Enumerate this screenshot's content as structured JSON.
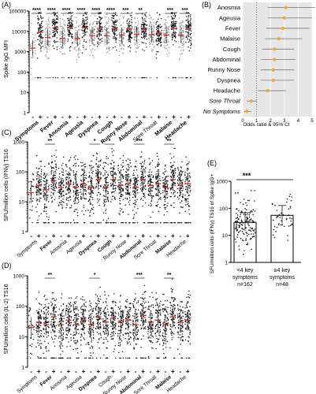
{
  "panels": [
    {
      "letter": "(A)",
      "ylabel": "Spike IgG MFI",
      "yticks": [
        "1",
        "10",
        "100",
        "1000",
        "10000",
        "100000"
      ],
      "groups": [
        "Symptoms",
        "Fever",
        "Anosmia",
        "Ageusia",
        "Dyspnea",
        "Cough",
        "Runny Nose",
        "Abdominal",
        "Sore Throat",
        "Malaise",
        "Headache"
      ],
      "bold": [
        true,
        true,
        true,
        true,
        true,
        true,
        true,
        true,
        false,
        true,
        true
      ],
      "signif": [
        "****",
        "****",
        "****",
        "****",
        "****",
        "****",
        "***",
        "**",
        "",
        "***",
        "***"
      ],
      "minus_label": "-",
      "plus_label": "+"
    },
    {
      "letter": "(C)",
      "ylabel": "SFU/million cells (IFNγ) TS16",
      "yticks": [
        "1",
        "10",
        "100",
        "1000"
      ],
      "groups": [
        "Symptoms",
        "Fever",
        "Anosmia",
        "Ageusia",
        "Dyspnea",
        "Cough",
        "Runny Nose",
        "Abdominal",
        "Sore Throat",
        "Malaise",
        "Headache"
      ],
      "bold": [
        false,
        true,
        false,
        false,
        true,
        true,
        false,
        true,
        false,
        true,
        false
      ],
      "signif": [
        "",
        "**",
        "",
        "",
        "*",
        "*",
        "",
        "***",
        "",
        "**",
        ""
      ],
      "minus_label": "-",
      "plus_label": "+"
    },
    {
      "letter": "(D)",
      "ylabel": "SFU/million cells (IL-2) TS16",
      "yticks": [
        "1",
        "10",
        "100",
        "1000"
      ],
      "groups": [
        "Symptoms",
        "Fever",
        "Anosmia",
        "Ageusia",
        "Dyspnea",
        "Cough",
        "Runny Nose",
        "Abdominal",
        "Sore Throat",
        "Malaise",
        "Headache"
      ],
      "bold": [
        false,
        true,
        false,
        false,
        true,
        false,
        false,
        true,
        false,
        true,
        false
      ],
      "signif": [
        "",
        "**",
        "",
        "",
        "*",
        "",
        "",
        "***",
        "",
        "**",
        ""
      ],
      "minus_label": "-",
      "plus_label": "+"
    }
  ],
  "panel_b": {
    "letter": "(B)",
    "xlabel": "Odds ratio & 95% CI",
    "xticks": [
      "0",
      "1",
      "2",
      "3",
      "4",
      "5"
    ]
  },
  "panel_e": {
    "letter": "(E)",
    "ylabel": "SFU/million cells (IFNγ) TS16 of Spike IgG+",
    "yticks": [
      "1",
      "10",
      "100",
      "1000"
    ],
    "signif": "***",
    "cat1_line1": "<4 key",
    "cat1_line2": "symptoms",
    "cat1_line3": "n=162",
    "cat2_line1": "≥4 key",
    "cat2_line2": "symptoms",
    "cat2_line3": "n=48"
  },
  "colors": {
    "point": "#1a1a1a",
    "point_light": "#9a9a9a",
    "median": "#e0231d",
    "orange": "#f5a623",
    "b_bg": "#e6e6e6",
    "e_bar": "#ffffff"
  },
  "chart_data": [
    {
      "type": "scatter",
      "title": "",
      "ylabel": "Spike IgG MFI",
      "yscale": "log",
      "ylim": [
        1,
        100000
      ],
      "categories": [
        "Symptoms -",
        "Symptoms +",
        "Fever -",
        "Fever +",
        "Anosmia -",
        "Anosmia +",
        "Ageusia -",
        "Ageusia +",
        "Dyspnea -",
        "Dyspnea +",
        "Cough -",
        "Cough +",
        "Runny Nose -",
        "Runny Nose +",
        "Abdominal -",
        "Abdominal +",
        "Sore Throat -",
        "Sore Throat +",
        "Malaise -",
        "Malaise +",
        "Headache -",
        "Headache +"
      ],
      "medians": [
        1500,
        9000,
        5000,
        15000,
        4500,
        16000,
        4500,
        15000,
        6000,
        14000,
        6000,
        13000,
        6500,
        13000,
        7000,
        12000,
        7000,
        9000,
        6500,
        14000,
        6500,
        13000
      ]
    },
    {
      "type": "bar",
      "orientation": "horizontal",
      "xlabel": "Odds ratio & 95% CI",
      "xlim": [
        0,
        5
      ],
      "categories": [
        "Anosmia",
        "Ageusia",
        "Fever",
        "Malaise",
        "Cough",
        "Abdominal",
        "Runny Nose",
        "Dyspnea",
        "Headache",
        "Sore Throat",
        "No Symptoms"
      ],
      "values": [
        3.1,
        3.0,
        2.9,
        2.6,
        2.3,
        2.3,
        2.2,
        2.2,
        1.8,
        0.6,
        0.3
      ],
      "ci_low": [
        1.8,
        1.8,
        1.7,
        1.6,
        1.4,
        1.3,
        1.3,
        1.3,
        1.1,
        0.3,
        0.1
      ],
      "ci_high": [
        5.2,
        5.0,
        4.8,
        4.3,
        3.7,
        3.8,
        3.7,
        3.7,
        3.1,
        1.0,
        0.6
      ]
    },
    {
      "type": "scatter",
      "ylabel": "SFU/million cells (IFNγ) TS16",
      "yscale": "log",
      "ylim": [
        1,
        1000
      ],
      "categories": [
        "Symptoms -",
        "Symptoms +",
        "Fever -",
        "Fever +",
        "Anosmia -",
        "Anosmia +",
        "Ageusia -",
        "Ageusia +",
        "Dyspnea -",
        "Dyspnea +",
        "Cough -",
        "Cough +",
        "Runny Nose -",
        "Runny Nose +",
        "Abdominal -",
        "Abdominal +",
        "Sore Throat -",
        "Sore Throat +",
        "Malaise -",
        "Malaise +",
        "Headache -",
        "Headache +"
      ],
      "medians": [
        20,
        35,
        25,
        50,
        30,
        40,
        30,
        40,
        30,
        55,
        30,
        55,
        35,
        40,
        30,
        55,
        35,
        40,
        30,
        55,
        35,
        40
      ]
    },
    {
      "type": "scatter",
      "ylabel": "SFU/million cells (IL-2) TS16",
      "yscale": "log",
      "ylim": [
        1,
        1000
      ],
      "categories": [
        "Symptoms -",
        "Symptoms +",
        "Fever -",
        "Fever +",
        "Anosmia -",
        "Anosmia +",
        "Ageusia -",
        "Ageusia +",
        "Dyspnea -",
        "Dyspnea +",
        "Cough -",
        "Cough +",
        "Runny Nose -",
        "Runny Nose +",
        "Abdominal -",
        "Abdominal +",
        "Sore Throat -",
        "Sore Throat +",
        "Malaise -",
        "Malaise +",
        "Headache -",
        "Headache +"
      ],
      "medians": [
        20,
        30,
        25,
        45,
        25,
        35,
        25,
        35,
        25,
        45,
        30,
        40,
        30,
        35,
        25,
        50,
        30,
        35,
        25,
        45,
        30,
        35
      ]
    },
    {
      "type": "bar",
      "ylabel": "SFU/million cells (IFNγ) TS16 of Spike IgG+",
      "yscale": "log",
      "ylim": [
        1,
        1000
      ],
      "categories": [
        "<4 key symptoms n=162",
        "≥4 key symptoms n=48"
      ],
      "values": [
        30,
        55
      ]
    }
  ]
}
